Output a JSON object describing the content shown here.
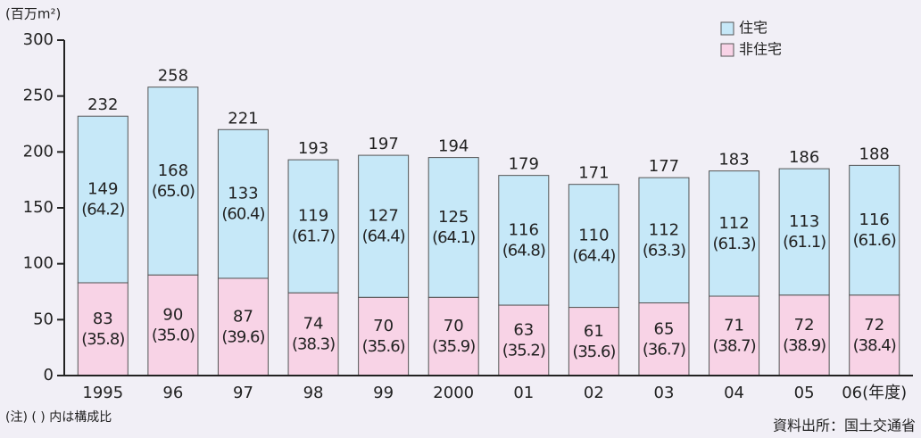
{
  "chart_data": {
    "type": "stacked_bar",
    "y_label": "(百万m²)",
    "categories": [
      "1995",
      "96",
      "97",
      "98",
      "99",
      "2000",
      "01",
      "02",
      "03",
      "04",
      "05",
      "06(年度)"
    ],
    "series": [
      {
        "name": "非住宅",
        "color": "#f8d3e6",
        "values": [
          83,
          90,
          87,
          74,
          70,
          70,
          63,
          61,
          65,
          71,
          72,
          72
        ],
        "share_labels": [
          "(35.8)",
          "(35.0)",
          "(39.6)",
          "(38.3)",
          "(35.6)",
          "(35.9)",
          "(35.2)",
          "(35.6)",
          "(36.7)",
          "(38.7)",
          "(38.9)",
          "(38.4)"
        ]
      },
      {
        "name": "住宅",
        "color": "#c6e8f8",
        "values": [
          149,
          168,
          133,
          119,
          127,
          125,
          116,
          110,
          112,
          112,
          113,
          116
        ],
        "share_labels": [
          "(64.2)",
          "(65.0)",
          "(60.4)",
          "(61.7)",
          "(64.4)",
          "(64.1)",
          "(64.8)",
          "(64.4)",
          "(63.3)",
          "(61.3)",
          "(61.1)",
          "(61.6)"
        ]
      }
    ],
    "totals": [
      232,
      258,
      221,
      193,
      197,
      194,
      179,
      171,
      177,
      183,
      186,
      188
    ],
    "ylim": [
      0,
      300
    ],
    "yticks": [
      0,
      50,
      100,
      150,
      200,
      250,
      300
    ],
    "note": "(注) (  ) 内は構成比",
    "source": "資料出所：国土交通省"
  }
}
